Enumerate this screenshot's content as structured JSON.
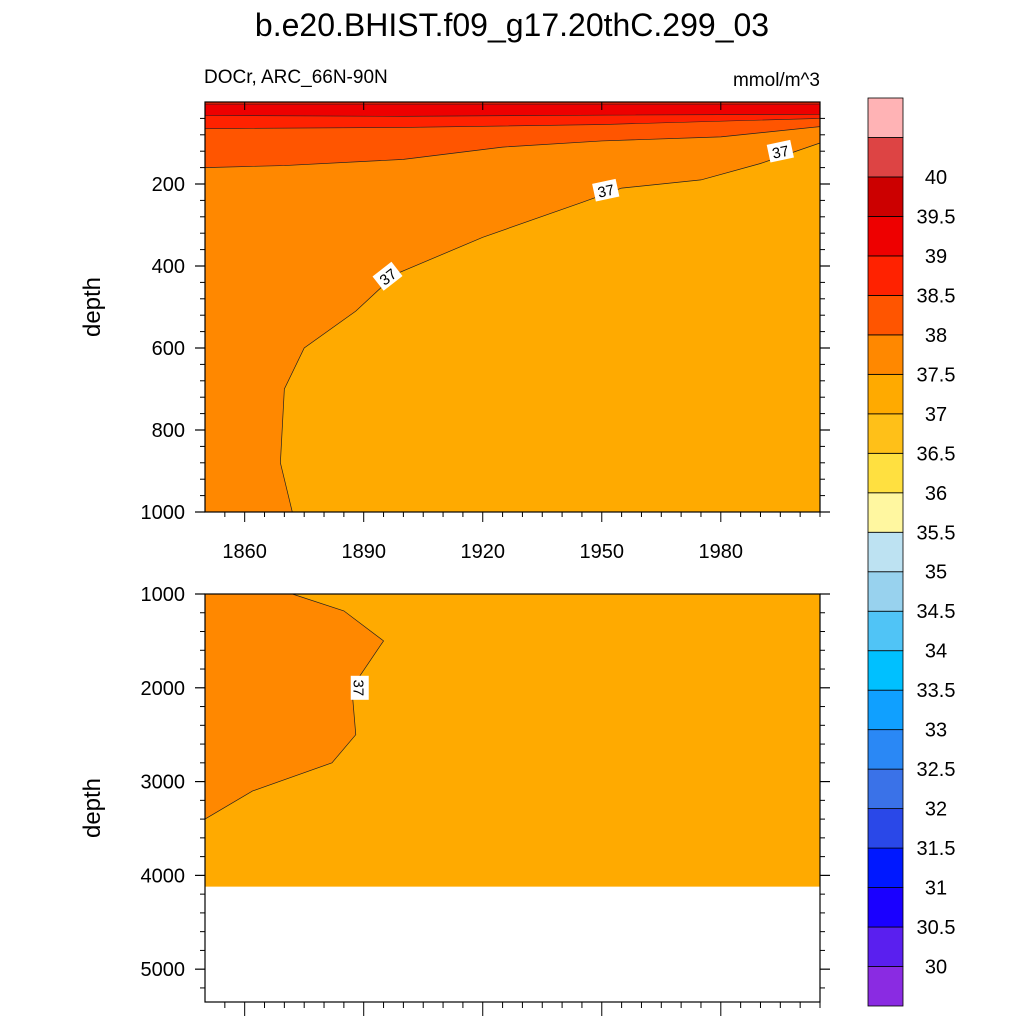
{
  "title": "b.e20.BHIST.f09_g17.20thC.299_03",
  "subtitle_left": "DOCr, ARC_66N-90N",
  "subtitle_right": "mmol/m^3",
  "chart_data": [
    {
      "type": "contour",
      "panel": "upper",
      "ylabel": "depth",
      "xlim": [
        1850,
        2005
      ],
      "ylim": [
        1000,
        0
      ],
      "x_ticks": [
        1860,
        1890,
        1920,
        1950,
        1980
      ],
      "y_ticks": [
        200,
        400,
        600,
        800,
        1000
      ],
      "x_tick_labels": [
        "1860",
        "1890",
        "1920",
        "1950",
        "1980"
      ],
      "y_tick_labels": [
        "200",
        "400",
        "600",
        "800",
        "1000"
      ],
      "background_level": "37.5-38",
      "regions": [
        {
          "level": "38.5-39",
          "color": "#ee0000",
          "boundary": [
            [
              1850,
              5
            ],
            [
              2005,
              5
            ],
            [
              2005,
              30
            ],
            [
              1950,
              32
            ],
            [
              1900,
              35
            ],
            [
              1850,
              33
            ]
          ]
        },
        {
          "level": "38-38.5",
          "color": "#ff2200",
          "boundary_bottom": [
            [
              1850,
              65
            ],
            [
              1900,
              62
            ],
            [
              1950,
              55
            ],
            [
              2005,
              40
            ]
          ]
        },
        {
          "level": "37.5-38",
          "color": "#ff5500",
          "boundary_bottom": [
            [
              1850,
              160
            ],
            [
              1870,
              155
            ],
            [
              1900,
              140
            ],
            [
              1925,
              110
            ],
            [
              1950,
              95
            ],
            [
              1980,
              85
            ],
            [
              2005,
              60
            ]
          ]
        },
        {
          "level": "37-37.5",
          "color": "#ff8800",
          "contour_37": [
            [
              1872,
              1000
            ],
            [
              1869,
              880
            ],
            [
              1870,
              700
            ],
            [
              1875,
              600
            ],
            [
              1888,
              510
            ],
            [
              1898,
              420
            ],
            [
              1920,
              330
            ],
            [
              1945,
              245
            ],
            [
              1955,
              210
            ],
            [
              1975,
              190
            ],
            [
              1990,
              150
            ],
            [
              2005,
              100
            ]
          ]
        },
        {
          "level": "36.5-37",
          "color": "#ffaa00",
          "location": "lower-right"
        }
      ],
      "contour_labels": [
        {
          "value": "37",
          "x": 1896,
          "y": 425
        },
        {
          "value": "37",
          "x": 1951,
          "y": 215
        },
        {
          "value": "37",
          "x": 1995,
          "y": 120
        }
      ]
    },
    {
      "type": "contour",
      "panel": "lower",
      "ylabel": "depth",
      "xlim": [
        1850,
        2005
      ],
      "ylim": [
        5350,
        1000
      ],
      "y_ticks": [
        1000,
        2000,
        3000,
        4000,
        5000
      ],
      "y_tick_labels": [
        "1000",
        "2000",
        "3000",
        "4000",
        "5000"
      ],
      "ocean_floor_depth": 4120,
      "background_level": "36.5-37",
      "regions": [
        {
          "level": "37-37.5",
          "color": "#ff8800",
          "contour_37": [
            [
              1872,
              1000
            ],
            [
              1885,
              1180
            ],
            [
              1895,
              1500
            ],
            [
              1887,
              2000
            ],
            [
              1888,
              2500
            ],
            [
              1882,
              2800
            ],
            [
              1862,
              3100
            ],
            [
              1850,
              3400
            ]
          ]
        }
      ],
      "contour_labels": [
        {
          "value": "37",
          "x": 1889,
          "y": 2000
        }
      ]
    }
  ],
  "colorbar": {
    "labels": [
      "30",
      "30.5",
      "31",
      "31.5",
      "32",
      "32.5",
      "33",
      "33.5",
      "34",
      "34.5",
      "35",
      "35.5",
      "36",
      "36.5",
      "37",
      "37.5",
      "38",
      "38.5",
      "39",
      "39.5",
      "40"
    ],
    "colors": [
      "#8a2be2",
      "#5a1fef",
      "#1a00ff",
      "#0018ff",
      "#2a48e8",
      "#3a72e8",
      "#2a88f5",
      "#10a0ff",
      "#00c0ff",
      "#50c4f6",
      "#98d2ee",
      "#bde2f2",
      "#fff7a0",
      "#ffe040",
      "#ffc018",
      "#ffaa00",
      "#ff8800",
      "#ff5500",
      "#ff2200",
      "#ee0000",
      "#cc0000",
      "#dd4444",
      "#ffb3b5"
    ]
  }
}
